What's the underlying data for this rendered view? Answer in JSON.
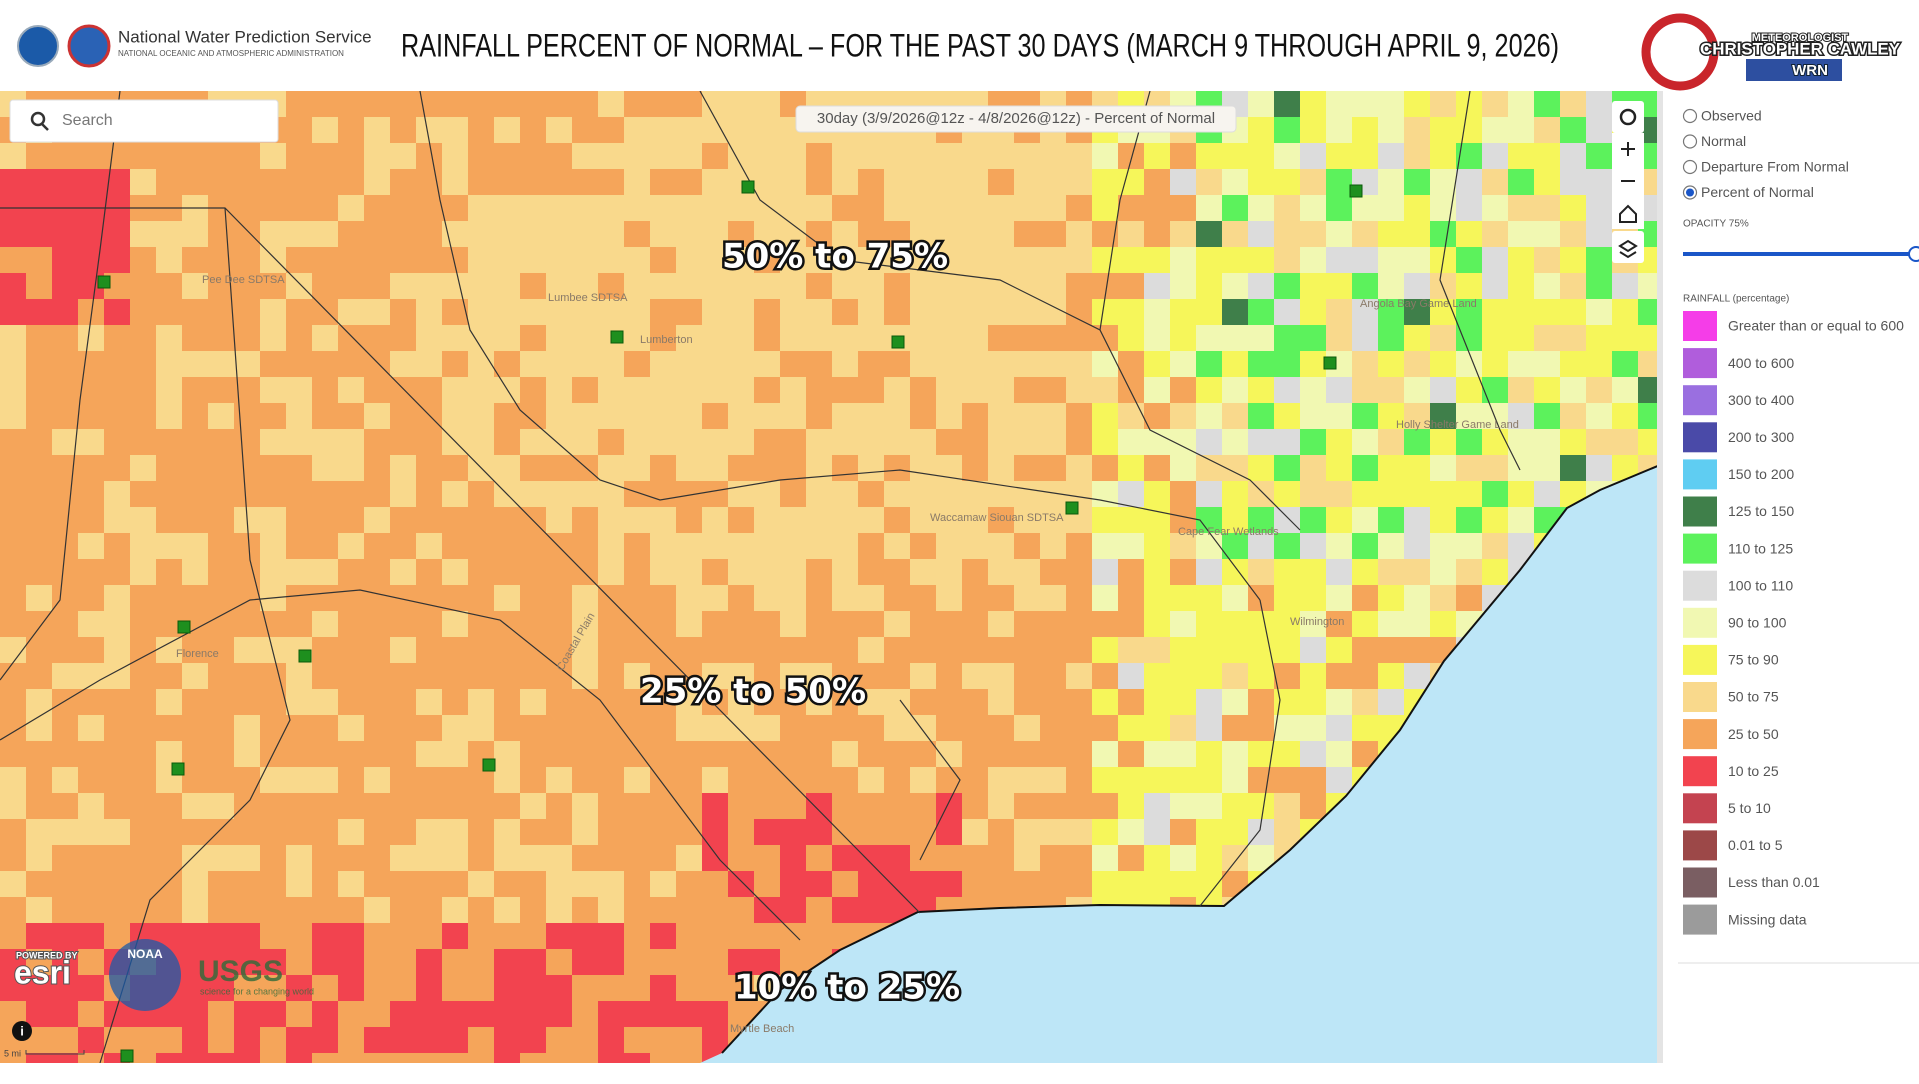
{
  "header": {
    "agency": "National Water Prediction Service",
    "agency_subtitle": "NATIONAL OCEANIC AND ATMOSPHERIC ADMINISTRATION",
    "title": "RAINFALL PERCENT OF NORMAL – FOR THE PAST 30 DAYS (MARCH 9 THROUGH APRIL 9, 2026)",
    "logo": {
      "role": "METEOROLOGIST",
      "name": "CHRISTOPHER CAWLEY",
      "badge": "WRN"
    }
  },
  "map": {
    "caption": "30day (3/9/2026@12z - 4/8/2026@12z) - Percent of Normal",
    "search_placeholder": "Search",
    "zone_labels": [
      "50% to 75%",
      "25% to 50%",
      "10% to 25%"
    ],
    "places": [
      "Pee Dee SDTSA",
      "Lumbee SDTSA",
      "Lumberton",
      "Florence",
      "Waccamaw Siouan SDTSA",
      "Angola Bay Game Land",
      "Holly Shelter Game Land",
      "Cape Fear Wetlands",
      "Wilmington",
      "Myrtle Beach",
      "Coastal Plain"
    ],
    "attribution": {
      "powered_by": "POWERED BY",
      "esri": "esri",
      "noaa": "NOAA",
      "usgs": "USGS",
      "usgs_tagline": "science for a changing world"
    },
    "scale": "5 mi"
  },
  "panel": {
    "options": [
      "Observed",
      "Normal",
      "Departure From Normal",
      "Percent of Normal"
    ],
    "selected": 3,
    "opacity_label": "OPACITY 75%",
    "legend_title": "RAINFALL (percentage)",
    "legend": [
      {
        "label": "Greater than or equal to 600",
        "color": "#f53de8"
      },
      {
        "label": "400 to 600",
        "color": "#b05ddc"
      },
      {
        "label": "300 to 400",
        "color": "#9a6fe0"
      },
      {
        "label": "200 to 300",
        "color": "#4a4aa8"
      },
      {
        "label": "150 to 200",
        "color": "#5fcdf2"
      },
      {
        "label": "125 to 150",
        "color": "#3f7f4a"
      },
      {
        "label": "110 to 125",
        "color": "#5cf25c"
      },
      {
        "label": "100 to 110",
        "color": "#dcdcdc"
      },
      {
        "label": "90 to 100",
        "color": "#f1f8b2"
      },
      {
        "label": "75 to 90",
        "color": "#f6f65a"
      },
      {
        "label": "50 to 75",
        "color": "#f9d98c"
      },
      {
        "label": "25 to 50",
        "color": "#f5a55a"
      },
      {
        "label": "10 to 25",
        "color": "#f2434f"
      },
      {
        "label": "5 to 10",
        "color": "#c44350"
      },
      {
        "label": "0.01 to 5",
        "color": "#9c4848"
      },
      {
        "label": "Less than 0.01",
        "color": "#7a5e62"
      },
      {
        "label": "Missing data",
        "color": "#9b9b9b"
      }
    ]
  }
}
